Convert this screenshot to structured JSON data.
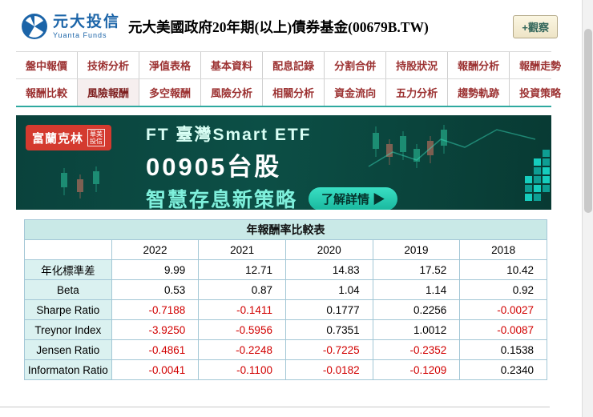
{
  "header": {
    "logo_name": "元大投信",
    "logo_en": "Yuanta Funds",
    "title": "元大美國政府20年期(以上)債券基金(00679B.TW)",
    "watch_button": "+觀察"
  },
  "nav": {
    "active": "風險報酬",
    "rows": [
      [
        "盤中報價",
        "技術分析",
        "淨值表格",
        "基本資料",
        "配息記錄",
        "分割合併",
        "持股狀況",
        "報酬分析",
        "報酬走勢"
      ],
      [
        "報酬比較",
        "風險報酬",
        "多空報酬",
        "風險分析",
        "相關分析",
        "資金流向",
        "五力分析",
        "趨勢軌跡",
        "投資策略"
      ]
    ]
  },
  "banner": {
    "brand": "富蘭克林",
    "brand_sub_top": "華美",
    "brand_sub_bottom": "投信",
    "line1": "FT 臺灣Smart ETF",
    "line2": "00905台股",
    "line3": "智慧存息新策略",
    "cta": "了解詳情 ▶"
  },
  "table": {
    "title": "年報酬率比較表",
    "columns": [
      "2022",
      "2021",
      "2020",
      "2019",
      "2018"
    ],
    "rows": [
      {
        "label": "年化標準差",
        "values": [
          "9.99",
          "12.71",
          "14.83",
          "17.52",
          "10.42"
        ]
      },
      {
        "label": "Beta",
        "values": [
          "0.53",
          "0.87",
          "1.04",
          "1.14",
          "0.92"
        ]
      },
      {
        "label": "Sharpe Ratio",
        "values": [
          "-0.7188",
          "-0.1411",
          "0.1777",
          "0.2256",
          "-0.0027"
        ]
      },
      {
        "label": "Treynor Index",
        "values": [
          "-3.9250",
          "-0.5956",
          "0.7351",
          "1.0012",
          "-0.0087"
        ]
      },
      {
        "label": "Jensen Ratio",
        "values": [
          "-0.4861",
          "-0.2248",
          "-0.7225",
          "-0.2352",
          "0.1538"
        ]
      },
      {
        "label": "Informaton Ratio",
        "values": [
          "-0.0041",
          "-0.1100",
          "-0.0182",
          "-0.1209",
          "0.2340"
        ]
      }
    ]
  },
  "colors": {
    "accent_teal": "#2fa9a0",
    "nav_red": "#9c3232",
    "negative_red": "#d10000",
    "table_title_bg": "#c9e9e7",
    "label_bg": "#daf1f0",
    "brand_red": "#d43a2f",
    "logo_blue": "#1b64a8"
  }
}
